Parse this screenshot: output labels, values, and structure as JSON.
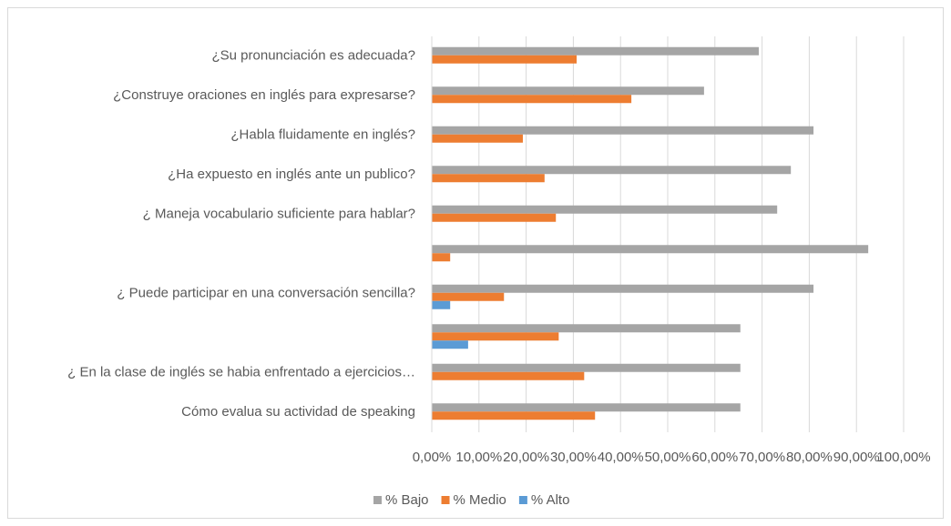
{
  "chart_data": {
    "type": "hbar",
    "categories": [
      "¿Su pronunciación es adecuada?",
      "¿Construye oraciones en inglés para expresarse?",
      "¿Habla fluidamente en inglés?",
      "¿Ha expuesto en inglés ante un publico?",
      "¿ Maneja vocabulario suficiente para hablar?",
      null,
      "¿ Puede participar en una conversación sencilla?",
      null,
      "¿ En la clase de inglés se habia enfrentado a ejercicios…",
      "Cómo evalua su actividad de speaking"
    ],
    "series": [
      {
        "name": "% Bajo",
        "color": "#a5a5a5",
        "values": [
          69.3,
          57.7,
          80.9,
          76.1,
          73.2,
          92.5,
          80.9,
          65.4,
          65.4,
          65.4
        ]
      },
      {
        "name": "% Medio",
        "color": "#ed7d31",
        "values": [
          30.7,
          42.3,
          19.3,
          23.9,
          26.3,
          3.9,
          15.3,
          26.9,
          32.3,
          34.6
        ]
      },
      {
        "name": "% Alto",
        "color": "#5b9bd5",
        "values": [
          0,
          0,
          0,
          0,
          0,
          0,
          3.9,
          7.7,
          0,
          0
        ]
      }
    ],
    "xlim": [
      0,
      100
    ],
    "xticks": [
      {
        "value": 0,
        "label": "0,00%"
      },
      {
        "value": 10,
        "label": "10,00%"
      },
      {
        "value": 20,
        "label": "20,00%"
      },
      {
        "value": 30,
        "label": "30,00%"
      },
      {
        "value": 40,
        "label": "40,00%"
      },
      {
        "value": 50,
        "label": "50,00%"
      },
      {
        "value": 60,
        "label": "60,00%"
      },
      {
        "value": 70,
        "label": "70,00%"
      },
      {
        "value": 80,
        "label": "80,00%"
      },
      {
        "value": 90,
        "label": "90,00%"
      },
      {
        "value": 100,
        "label": "100,00%"
      }
    ],
    "grid": true,
    "legend": "bottom"
  }
}
